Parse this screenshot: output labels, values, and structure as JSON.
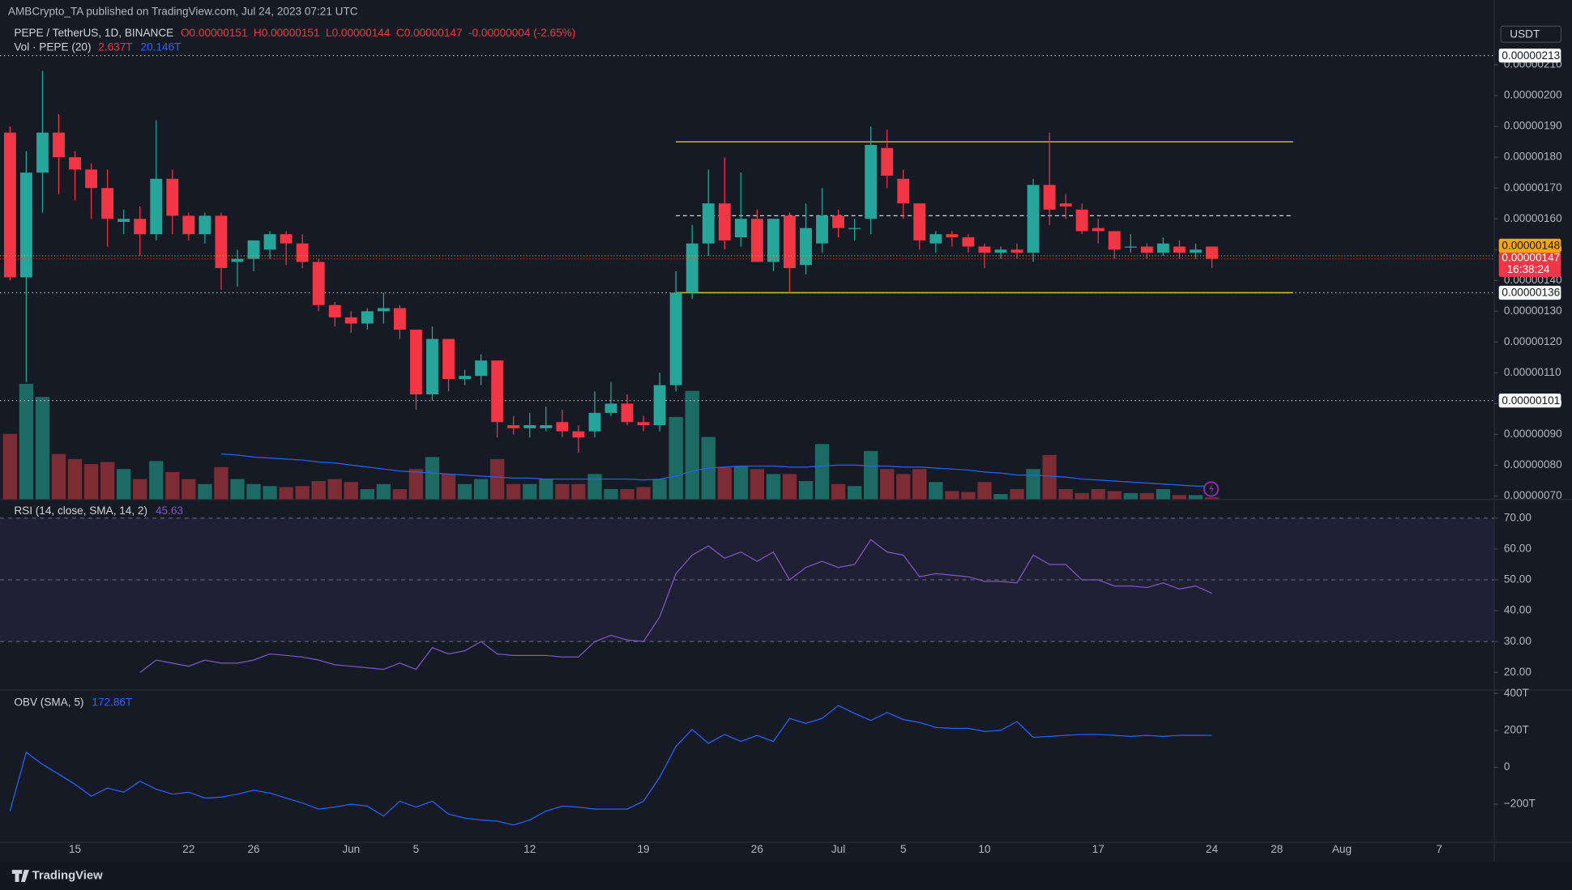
{
  "header": "AMBCrypto_TA published on TradingView.com, Jul 24, 2023 07:21 UTC",
  "quote_currency": "USDT",
  "footer": "TradingView",
  "chart_data": [
    {
      "type": "candlestick",
      "legend": {
        "symbol": "PEPE / TetherUS, 1D, BINANCE",
        "open": "O0.00000151",
        "high": "H0.00000151",
        "low": "L0.00000144",
        "close": "C0.00000147",
        "change": "-0.00000004 (-2.65%)",
        "volume_title": "Vol · PEPE (20)",
        "volume": "2.637T",
        "volume_sma": "20.146T"
      },
      "categories": [
        null,
        null,
        null,
        null,
        "15",
        null,
        null,
        null,
        null,
        null,
        null,
        "22",
        null,
        null,
        null,
        "26",
        null,
        null,
        null,
        null,
        null,
        "Jun",
        null,
        null,
        null,
        "5",
        null,
        null,
        null,
        null,
        null,
        null,
        "12",
        null,
        null,
        null,
        null,
        null,
        null,
        "19",
        null,
        null,
        null,
        null,
        null,
        null,
        "26",
        null,
        null,
        null,
        null,
        "Jul",
        null,
        null,
        null,
        "5",
        null,
        null,
        null,
        null,
        "10",
        null,
        null,
        null,
        null,
        null,
        null,
        "17",
        null,
        null,
        null,
        null,
        null,
        null,
        "24",
        null,
        null,
        null,
        "28",
        null,
        null,
        null,
        "Aug",
        null,
        null,
        null,
        null,
        null,
        "7"
      ],
      "open": [
        1.88e-06,
        1.41e-06,
        1.75e-06,
        1.88e-06,
        1.8e-06,
        1.76e-06,
        1.7e-06,
        1.59e-06,
        1.6e-06,
        1.55e-06,
        1.73e-06,
        1.61e-06,
        1.55e-06,
        1.61e-06,
        1.46e-06,
        1.47e-06,
        1.5e-06,
        1.55e-06,
        1.52e-06,
        1.46e-06,
        1.32e-06,
        1.28e-06,
        1.26e-06,
        1.3e-06,
        1.31e-06,
        1.24e-06,
        1.03e-06,
        1.21e-06,
        1.08e-06,
        1.09e-06,
        1.14e-06,
        9.3e-07,
        9.2e-07,
        9.2e-07,
        9.4e-07,
        9.1e-07,
        9.1e-07,
        9.7e-07,
        1e-06,
        9.4e-07,
        9.3e-07,
        1.06e-06,
        1.36e-06,
        1.52e-06,
        1.65e-06,
        1.54e-06,
        1.6e-06,
        1.46e-06,
        1.61e-06,
        1.45e-06,
        1.52e-06,
        1.61e-06,
        1.57e-06,
        1.6e-06,
        1.83e-06,
        1.73e-06,
        1.65e-06,
        1.52e-06,
        1.55e-06,
        1.54e-06,
        1.51e-06,
        1.49e-06,
        1.5e-06,
        1.49e-06,
        1.71e-06,
        1.65e-06,
        1.63e-06,
        1.57e-06,
        1.56e-06,
        1.51e-06,
        1.51e-06,
        1.49e-06,
        1.51e-06,
        1.49e-06,
        1.51e-06,
        null,
        null,
        null,
        null,
        null,
        null,
        null,
        null,
        null,
        null,
        null,
        null,
        null,
        null
      ],
      "high": [
        1.9e-06,
        1.82e-06,
        2.08e-06,
        1.94e-06,
        1.82e-06,
        1.78e-06,
        1.76e-06,
        1.63e-06,
        1.64e-06,
        1.92e-06,
        1.76e-06,
        1.62e-06,
        1.62e-06,
        1.62e-06,
        1.5e-06,
        1.53e-06,
        1.56e-06,
        1.56e-06,
        1.55e-06,
        1.47e-06,
        1.33e-06,
        1.3e-06,
        1.31e-06,
        1.36e-06,
        1.32e-06,
        1.24e-06,
        1.25e-06,
        1.21e-06,
        1.11e-06,
        1.16e-06,
        1.14e-06,
        9.6e-07,
        9.7e-07,
        9.9e-07,
        9.8e-07,
        9.3e-07,
        1.04e-06,
        1.07e-06,
        1.03e-06,
        9.6e-07,
        1.1e-06,
        1.43e-06,
        1.58e-06,
        1.76e-06,
        1.8e-06,
        1.75e-06,
        1.63e-06,
        1.6e-06,
        1.62e-06,
        1.65e-06,
        1.7e-06,
        1.63e-06,
        1.6e-06,
        1.9e-06,
        1.89e-06,
        1.76e-06,
        1.65e-06,
        1.56e-06,
        1.56e-06,
        1.55e-06,
        1.52e-06,
        1.51e-06,
        1.52e-06,
        1.73e-06,
        1.88e-06,
        1.68e-06,
        1.65e-06,
        1.6e-06,
        1.56e-06,
        1.55e-06,
        1.52e-06,
        1.54e-06,
        1.53e-06,
        1.52e-06,
        1.51e-06,
        null,
        null,
        null,
        null,
        null,
        null,
        null,
        null,
        null,
        null,
        null,
        null,
        null,
        null
      ],
      "low": [
        1.4e-06,
        1.07e-06,
        1.62e-06,
        1.68e-06,
        1.66e-06,
        1.6e-06,
        1.51e-06,
        1.55e-06,
        1.48e-06,
        1.53e-06,
        1.55e-06,
        1.53e-06,
        1.52e-06,
        1.37e-06,
        1.38e-06,
        1.43e-06,
        1.47e-06,
        1.45e-06,
        1.44e-06,
        1.3e-06,
        1.25e-06,
        1.23e-06,
        1.24e-06,
        1.26e-06,
        1.21e-06,
        9.8e-07,
        1.01e-06,
        1.04e-06,
        1.06e-06,
        1.06e-06,
        8.9e-07,
        9e-07,
        8.9e-07,
        9.1e-07,
        8.9e-07,
        8.4e-07,
        8.9e-07,
        9.6e-07,
        9.3e-07,
        9.1e-07,
        9.1e-07,
        1.04e-06,
        1.34e-06,
        1.48e-06,
        1.5e-06,
        1.51e-06,
        1.46e-06,
        1.43e-06,
        1.36e-06,
        1.42e-06,
        1.49e-06,
        1.54e-06,
        1.53e-06,
        1.55e-06,
        1.7e-06,
        1.6e-06,
        1.5e-06,
        1.49e-06,
        1.51e-06,
        1.49e-06,
        1.44e-06,
        1.47e-06,
        1.47e-06,
        1.46e-06,
        1.58e-06,
        1.6e-06,
        1.55e-06,
        1.52e-06,
        1.47e-06,
        1.49e-06,
        1.47e-06,
        1.48e-06,
        1.47e-06,
        1.47e-06,
        1.44e-06,
        null,
        null,
        null,
        null,
        null,
        null,
        null,
        null,
        null,
        null,
        null,
        null,
        null,
        null
      ],
      "close": [
        1.41e-06,
        1.75e-06,
        1.88e-06,
        1.8e-06,
        1.76e-06,
        1.7e-06,
        1.6e-06,
        1.6e-06,
        1.55e-06,
        1.73e-06,
        1.61e-06,
        1.55e-06,
        1.61e-06,
        1.44e-06,
        1.47e-06,
        1.53e-06,
        1.55e-06,
        1.52e-06,
        1.46e-06,
        1.32e-06,
        1.28e-06,
        1.26e-06,
        1.3e-06,
        1.31e-06,
        1.24e-06,
        1.03e-06,
        1.21e-06,
        1.08e-06,
        1.09e-06,
        1.14e-06,
        9.4e-07,
        9.2e-07,
        9.3e-07,
        9.3e-07,
        9.1e-07,
        8.9e-07,
        9.7e-07,
        1e-06,
        9.4e-07,
        9.3e-07,
        1.06e-06,
        1.36e-06,
        1.52e-06,
        1.65e-06,
        1.53e-06,
        1.6e-06,
        1.46e-06,
        1.6e-06,
        1.44e-06,
        1.57e-06,
        1.61e-06,
        1.57e-06,
        1.57e-06,
        1.84e-06,
        1.74e-06,
        1.65e-06,
        1.53e-06,
        1.55e-06,
        1.54e-06,
        1.51e-06,
        1.49e-06,
        1.5e-06,
        1.49e-06,
        1.71e-06,
        1.63e-06,
        1.64e-06,
        1.56e-06,
        1.56e-06,
        1.5e-06,
        1.51e-06,
        1.49e-06,
        1.52e-06,
        1.49e-06,
        1.5e-06,
        1.47e-06,
        null,
        null,
        null,
        null,
        null,
        null,
        null,
        null,
        null,
        null,
        null,
        null,
        null,
        null
      ],
      "volume": [
        100.8,
        178.3,
        158.1,
        69.8,
        62,
        54.3,
        57.4,
        46.5,
        31,
        58.9,
        41.9,
        31,
        23.3,
        49.6,
        31,
        23.3,
        20.2,
        18.6,
        20.2,
        27.9,
        31,
        26.4,
        15.5,
        23.3,
        15.5,
        46.5,
        65.1,
        38.8,
        23.3,
        31,
        62,
        23.3,
        23.3,
        31,
        23.3,
        23.3,
        38.8,
        15.5,
        15.5,
        18.6,
        31,
        127.1,
        167.4,
        96.1,
        49.6,
        51.2,
        46.5,
        38.8,
        38.8,
        27.9,
        85.3,
        23.3,
        20.2,
        74.4,
        46.5,
        38.8,
        46.5,
        26.4,
        12.4,
        10.9,
        26.4,
        7.8,
        15.5,
        46.5,
        68.2,
        15.5,
        9.3,
        15.5,
        12.4,
        9.3,
        9.3,
        15.5,
        6.2,
        6.2,
        2.637,
        null,
        null,
        null,
        null,
        null,
        null,
        null,
        null,
        null,
        null,
        null,
        null,
        null,
        null
      ],
      "volume_sma": [
        null,
        null,
        null,
        null,
        null,
        null,
        null,
        null,
        null,
        null,
        null,
        null,
        null,
        69.8,
        68.2,
        65.1,
        63.6,
        62,
        60.5,
        57.4,
        55.8,
        52.7,
        49.6,
        46.5,
        43.4,
        41.9,
        40.3,
        38.8,
        37.2,
        35.7,
        34.1,
        32.6,
        32.6,
        31,
        31,
        31,
        31,
        31,
        31,
        29.5,
        31,
        35.7,
        43.4,
        48.1,
        49.6,
        51.2,
        51.2,
        51.2,
        49.6,
        49.6,
        51.2,
        52.7,
        52.7,
        51.2,
        51.2,
        49.6,
        49.6,
        48.1,
        46.5,
        45,
        41.9,
        40.3,
        37.2,
        37.2,
        35.7,
        34.1,
        31,
        29.5,
        27.9,
        26.4,
        24.8,
        23.3,
        21.7,
        20.1,
        20.146,
        null,
        null,
        null,
        null,
        null,
        null,
        null,
        null,
        null,
        null,
        null,
        null,
        null,
        null
      ],
      "up_color": "#26a69a",
      "down_color": "#f23645",
      "volume_up_color": "#1d6964",
      "volume_down_color": "#7b2c35",
      "volume_sma_color": "#2962ff",
      "ylim": [
        6.9e-07,
        2.31e-06
      ],
      "yticks": [
        {
          "value": 7e-07,
          "label": "0.00000070"
        },
        {
          "value": 8e-07,
          "label": "0.00000080"
        },
        {
          "value": 9e-07,
          "label": "0.00000090"
        },
        {
          "value": 1e-06,
          "label": "0.00000100"
        },
        {
          "value": 1.1e-06,
          "label": "0.00000110"
        },
        {
          "value": 1.2e-06,
          "label": "0.00000120"
        },
        {
          "value": 1.3e-06,
          "label": "0.00000130"
        },
        {
          "value": 1.4e-06,
          "label": "0.00000140"
        },
        {
          "value": 1.5e-06,
          "label": "0.00000150"
        },
        {
          "value": 1.6e-06,
          "label": "0.00000160"
        },
        {
          "value": 1.7e-06,
          "label": "0.00000170"
        },
        {
          "value": 1.8e-06,
          "label": "0.00000180"
        },
        {
          "value": 1.9e-06,
          "label": "0.00000190"
        },
        {
          "value": 2e-06,
          "label": "0.00000200"
        },
        {
          "value": 2.1e-06,
          "label": "0.00000210"
        }
      ],
      "levels": [
        {
          "value": 2.13e-06,
          "label": "0.00000213"
        },
        {
          "value": 1.36e-06,
          "label": "0.00000136"
        },
        {
          "value": 1.01e-06,
          "label": "0.00000101"
        }
      ],
      "channel": {
        "upper": 1.85e-06,
        "lower": 1.36e-06,
        "mid": 1.61e-06,
        "color": "#c9b92a"
      },
      "price_labels": [
        {
          "value": 1.47e-06,
          "label": "0.00000147",
          "countdown": "16:38:24",
          "color": "#f23645"
        },
        {
          "value": 1.48e-06,
          "label": "0.00000148",
          "color": "#f7a600"
        }
      ]
    },
    {
      "type": "line",
      "legend": "RSI (14, close, SMA, 14, 2)",
      "color": "#7e57c2",
      "values": [
        null,
        null,
        null,
        null,
        null,
        null,
        null,
        null,
        20,
        24,
        23,
        22,
        24,
        23,
        23,
        24,
        26,
        25.5,
        25,
        24,
        22.5,
        22,
        21.5,
        21,
        23,
        21,
        28,
        26,
        27,
        30,
        26,
        25.5,
        25.5,
        25.5,
        25,
        25,
        30,
        32,
        30.5,
        30,
        38,
        52,
        58,
        61,
        57,
        59,
        56,
        59,
        50,
        54,
        56,
        54,
        55,
        63,
        59,
        58,
        51,
        52,
        51.5,
        51,
        49.5,
        49.5,
        49,
        58,
        55,
        55,
        50,
        50,
        48,
        48,
        47.5,
        49,
        47,
        48,
        45.63,
        null,
        null,
        null,
        null,
        null,
        null,
        null,
        null,
        null,
        null,
        null,
        null,
        null,
        null
      ],
      "ylim": [
        14.8,
        75.5
      ],
      "yticks": [
        {
          "value": 70,
          "label": "70.00"
        },
        {
          "value": 60,
          "label": "60.00"
        },
        {
          "value": 50,
          "label": "50.00"
        },
        {
          "value": 40,
          "label": "40.00"
        },
        {
          "value": 30,
          "label": "30.00"
        },
        {
          "value": 20,
          "label": "20.00"
        }
      ],
      "band": [
        30,
        70
      ],
      "guides": [
        70,
        50,
        30
      ]
    },
    {
      "type": "line",
      "legend": "OBV (SMA, 5)",
      "legend_value": "172.86T",
      "color": "#2962ff",
      "values": [
        -238,
        81,
        16,
        -38,
        -92,
        -157,
        -113,
        -135,
        -76,
        -119,
        -146,
        -135,
        -167,
        -162,
        -146,
        -124,
        -140,
        -167,
        -194,
        -227,
        -216,
        -200,
        -211,
        -265,
        -184,
        -216,
        -184,
        -254,
        -275,
        -286,
        -292,
        -313,
        -286,
        -238,
        -211,
        -216,
        -227,
        -227,
        -227,
        -184,
        -54,
        113,
        205,
        130,
        178,
        140,
        173,
        140,
        265,
        238,
        265,
        335,
        292,
        254,
        297,
        259,
        243,
        216,
        211,
        211,
        194,
        200,
        248,
        162,
        167,
        173,
        178,
        178,
        173,
        167,
        173,
        167,
        173,
        173,
        172.86,
        null,
        null,
        null,
        null,
        null,
        null,
        null,
        null,
        null,
        null,
        null,
        null,
        null,
        null
      ],
      "ylim": [
        -404,
        411
      ],
      "yticks": [
        {
          "value": 400,
          "label": "400T"
        },
        {
          "value": 200,
          "label": "200T"
        },
        0,
        {
          "value": -200,
          "label": "−200T"
        }
      ]
    }
  ]
}
